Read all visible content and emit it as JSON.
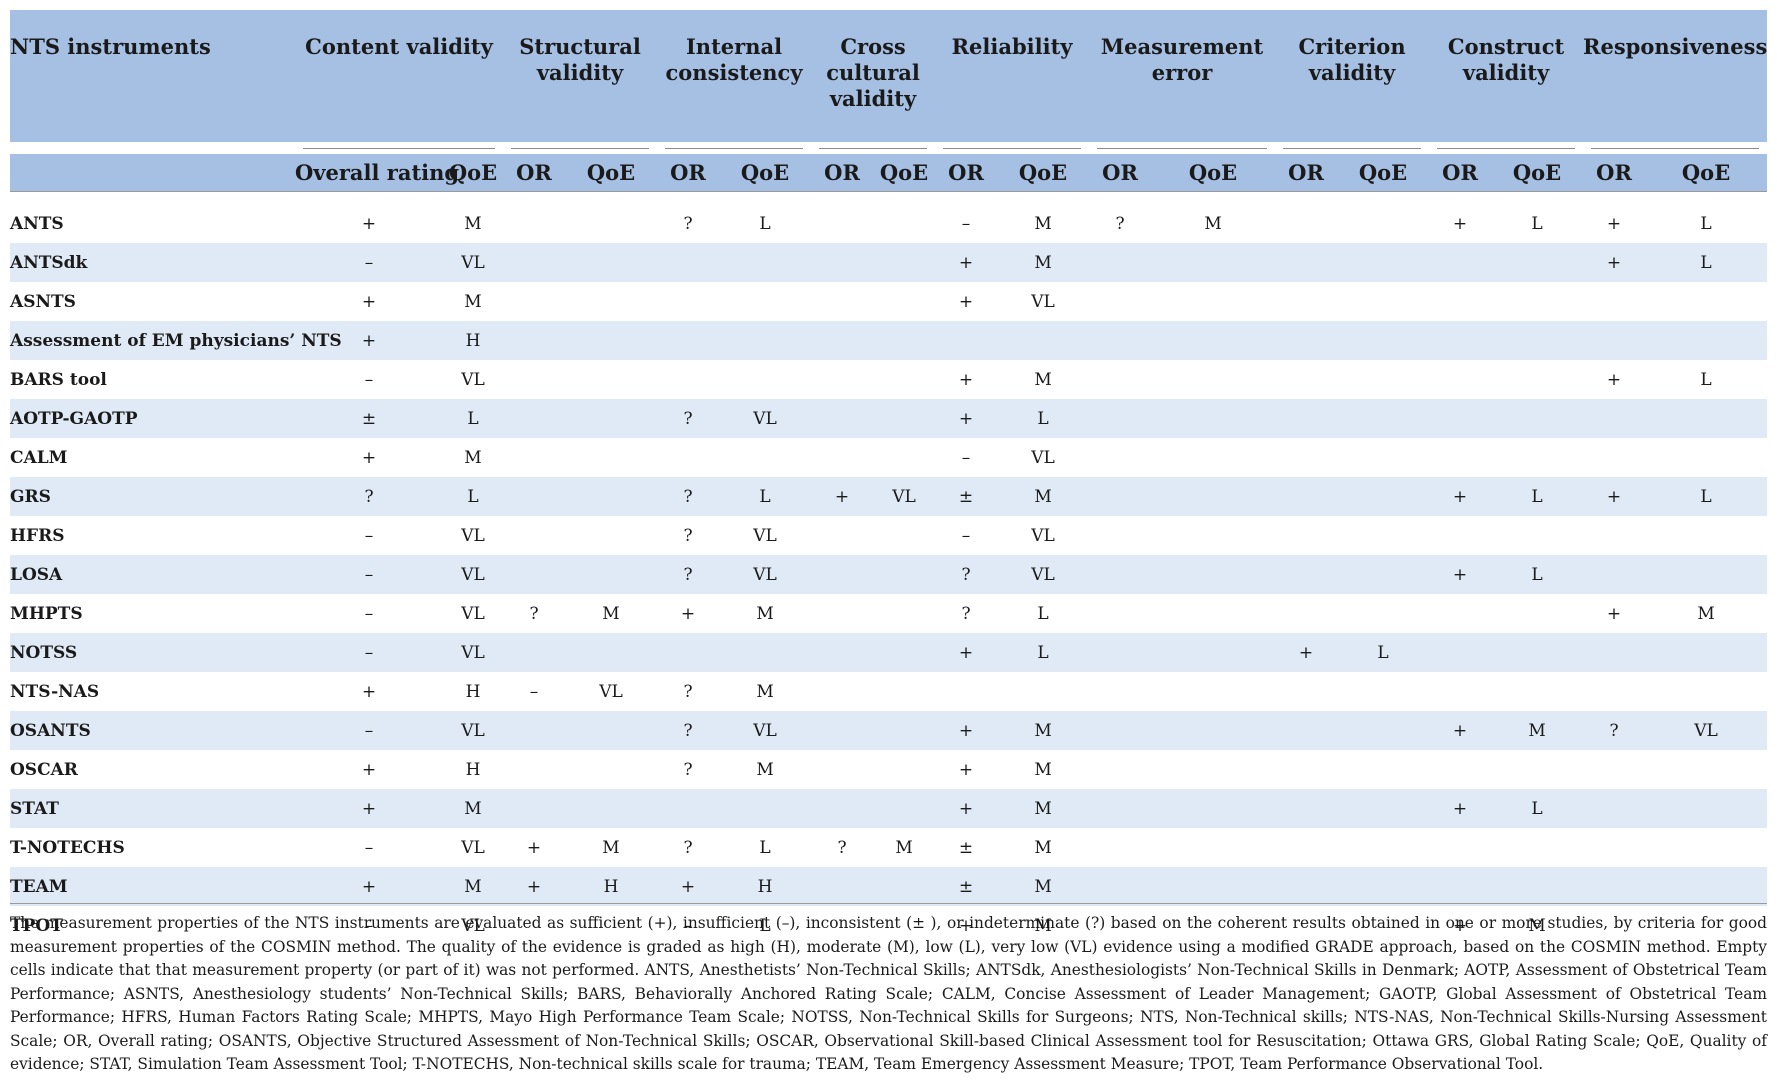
{
  "table": {
    "group_headers": [
      "NTS instruments",
      "Content validity",
      "Structural validity",
      "Internal consistency",
      "Cross cultural validity",
      "Reliability",
      "Measurement error",
      "Criterion validity",
      "Construct validity",
      "Responsiveness"
    ],
    "sub_headers": [
      "",
      "Overall rating",
      "QoE",
      "OR",
      "QoE",
      "OR",
      "QoE",
      "OR",
      "QoE",
      "OR",
      "QoE",
      "OR",
      "QoE",
      "OR",
      "QoE",
      "OR",
      "QoE",
      "OR",
      "QoE"
    ],
    "rows": [
      [
        "ANTS",
        "+",
        "M",
        "",
        "",
        "?",
        "L",
        "",
        "",
        "–",
        "M",
        "?",
        "M",
        "",
        "",
        "+",
        "L",
        "+",
        "L"
      ],
      [
        "ANTSdk",
        "–",
        "VL",
        "",
        "",
        "",
        "",
        "",
        "",
        "+",
        "M",
        "",
        "",
        "",
        "",
        "",
        "",
        "+",
        "L"
      ],
      [
        "ASNTS",
        "+",
        "M",
        "",
        "",
        "",
        "",
        "",
        "",
        "+",
        "VL",
        "",
        "",
        "",
        "",
        "",
        "",
        "",
        ""
      ],
      [
        "Assessment of EM physicians’ NTS",
        "+",
        "H",
        "",
        "",
        "",
        "",
        "",
        "",
        "",
        "",
        "",
        "",
        "",
        "",
        "",
        "",
        "",
        ""
      ],
      [
        "BARS tool",
        "–",
        "VL",
        "",
        "",
        "",
        "",
        "",
        "",
        "+",
        "M",
        "",
        "",
        "",
        "",
        "",
        "",
        "+",
        "L"
      ],
      [
        "AOTP-GAOTP",
        "±",
        "L",
        "",
        "",
        "?",
        "VL",
        "",
        "",
        "+",
        "L",
        "",
        "",
        "",
        "",
        "",
        "",
        "",
        ""
      ],
      [
        "CALM",
        "+",
        "M",
        "",
        "",
        "",
        "",
        "",
        "",
        "–",
        "VL",
        "",
        "",
        "",
        "",
        "",
        "",
        "",
        ""
      ],
      [
        "GRS",
        "?",
        "L",
        "",
        "",
        "?",
        "L",
        "+",
        "VL",
        "±",
        "M",
        "",
        "",
        "",
        "",
        "+",
        "L",
        "+",
        "L"
      ],
      [
        "HFRS",
        "–",
        "VL",
        "",
        "",
        "?",
        "VL",
        "",
        "",
        "–",
        "VL",
        "",
        "",
        "",
        "",
        "",
        "",
        "",
        ""
      ],
      [
        "LOSA",
        "–",
        "VL",
        "",
        "",
        "?",
        "VL",
        "",
        "",
        "?",
        "VL",
        "",
        "",
        "",
        "",
        "+",
        "L",
        "",
        ""
      ],
      [
        "MHPTS",
        "–",
        "VL",
        "?",
        "M",
        "+",
        "M",
        "",
        "",
        "?",
        "L",
        "",
        "",
        "",
        "",
        "",
        "",
        "+",
        "M"
      ],
      [
        "NOTSS",
        "–",
        "VL",
        "",
        "",
        "",
        "",
        "",
        "",
        "+",
        "L",
        "",
        "",
        "+",
        "L",
        "",
        "",
        "",
        ""
      ],
      [
        "NTS-NAS",
        "+",
        "H",
        "–",
        "VL",
        "?",
        "M",
        "",
        "",
        "",
        "",
        "",
        "",
        "",
        "",
        "",
        "",
        "",
        ""
      ],
      [
        "OSANTS",
        "–",
        "VL",
        "",
        "",
        "?",
        "VL",
        "",
        "",
        "+",
        "M",
        "",
        "",
        "",
        "",
        "+",
        "M",
        "?",
        "VL"
      ],
      [
        "OSCAR",
        "+",
        "H",
        "",
        "",
        "?",
        "M",
        "",
        "",
        "+",
        "M",
        "",
        "",
        "",
        "",
        "",
        "",
        "",
        ""
      ],
      [
        "STAT",
        "+",
        "M",
        "",
        "",
        "",
        "",
        "",
        "",
        "+",
        "M",
        "",
        "",
        "",
        "",
        "+",
        "L",
        "",
        ""
      ],
      [
        "T-NOTECHS",
        "–",
        "VL",
        "+",
        "M",
        "?",
        "L",
        "?",
        "M",
        "±",
        "M",
        "",
        "",
        "",
        "",
        "",
        "",
        "",
        ""
      ],
      [
        "TEAM",
        "+",
        "M",
        "+",
        "H",
        "+",
        "H",
        "",
        "",
        "±",
        "M",
        "",
        "",
        "",
        "",
        "",
        "",
        "",
        ""
      ],
      [
        "TPOT",
        "–",
        "VL",
        "",
        "",
        "–",
        "L",
        "",
        "",
        "+",
        "M",
        "",
        "",
        "",
        "",
        "+",
        "M",
        "",
        ""
      ]
    ]
  },
  "footnote": "The measurement properties of the NTS instruments are evaluated as sufficient (+), insufficient (–), inconsistent (± ), or indeterminate (?) based on the coherent results obtained in one or more studies, by criteria for good measurement properties of the COSMIN method. The quality of the evidence is graded as high (H), moderate (M), low (L), very low (VL) evidence using a modified GRADE approach, based on the COSMIN method. Empty cells indicate that that measurement property (or part of it) was not performed. ANTS, Anesthetists’ Non-Technical Skills; ANTSdk, Anesthesiologists’ Non-Technical Skills in Denmark; AOTP, Assessment of Obstetrical Team Performance; ASNTS, Anesthesiology students’ Non-Technical Skills; BARS, Behaviorally Anchored Rating Scale; CALM, Concise Assessment of Leader Management; GAOTP, Global Assessment of Obstetrical Team Performance; HFRS, Human Factors Rating Scale; MHPTS, Mayo High Performance Team Scale; NOTSS, Non-Technical Skills for Surgeons; NTS, Non-Technical skills; NTS-NAS, Non-Technical Skills-Nursing Assessment Scale; OR, Overall rating; OSANTS, Objective Structured Assessment of Non-Technical Skills; OSCAR, Observational Skill-based Clinical Assessment tool for Resuscitation; Ottawa GRS, Global Rating Scale; QoE, Quality of evidence; STAT, Simulation Team Assessment Tool; T-NOTECHS, Non-technical skills scale for trauma; TEAM, Team Emergency Assessment Measure; TPOT, Team Performance Observational Tool."
}
